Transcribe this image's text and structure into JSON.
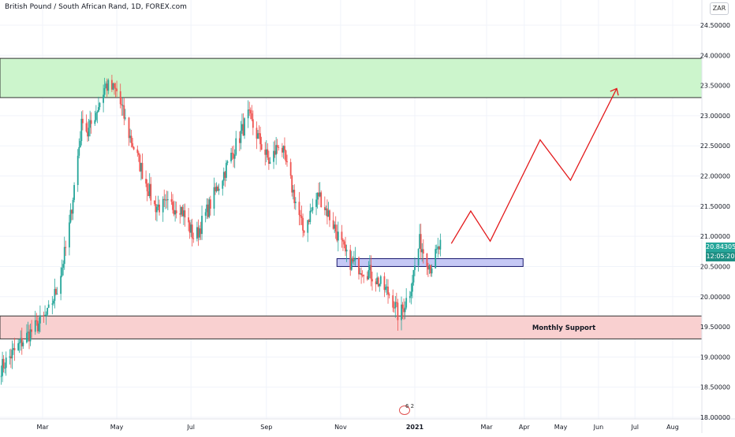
{
  "header": {
    "title": "British Pound / South African Rand, 1D, FOREX.com",
    "currency_button": "ZAR"
  },
  "price_labels": {
    "last_price": "20.84305",
    "countdown": "12:05:20"
  },
  "annotations": {
    "monthly_support": "Monthly Support"
  },
  "logo": {
    "digits": "6 2"
  },
  "colors": {
    "up_candle": "#26a69a",
    "down_candle": "#ef5350",
    "resistance_zone": "#ccf5cc",
    "support_zone": "#f9d0d0",
    "breakout_box": "#c5c8f5",
    "projection_line": "#e31a1c",
    "price_tag": "#26a69a"
  },
  "chart_data": {
    "type": "candlestick",
    "symbol": "British Pound / South African Rand",
    "interval": "1D",
    "y_axis": {
      "range": [
        18.0,
        24.6
      ],
      "ticks": [
        "18.00000",
        "18.50000",
        "19.00000",
        "19.50000",
        "20.00000",
        "20.50000",
        "21.00000",
        "21.50000",
        "22.00000",
        "22.50000",
        "23.00000",
        "23.50000",
        "24.00000",
        "24.50000"
      ],
      "tick_values": [
        18.0,
        18.5,
        19.0,
        19.5,
        20.0,
        20.5,
        21.0,
        21.5,
        22.0,
        22.5,
        23.0,
        23.5,
        24.0,
        24.5
      ]
    },
    "x_axis": {
      "ticks": [
        "Mar",
        "May",
        "Jul",
        "Sep",
        "Nov",
        "2021",
        "Mar",
        "Apr",
        "May",
        "Jun",
        "Jul",
        "Aug"
      ],
      "tick_dates": [
        "2020-03-01",
        "2020-05-01",
        "2020-07-01",
        "2020-09-01",
        "2020-11-01",
        "2021-01-01",
        "2021-03-01",
        "2021-04-01",
        "2021-05-01",
        "2021-06-01",
        "2021-07-01",
        "2021-08-01"
      ],
      "range": [
        "2020-01-26",
        "2021-08-25"
      ]
    },
    "closing_path": [
      {
        "date": "2020-01-26",
        "close": 18.8
      },
      {
        "date": "2020-02-15",
        "close": 19.3
      },
      {
        "date": "2020-03-05",
        "close": 19.7
      },
      {
        "date": "2020-03-14",
        "close": 20.2
      },
      {
        "date": "2020-03-22",
        "close": 21.0
      },
      {
        "date": "2020-04-03",
        "close": 23.0
      },
      {
        "date": "2020-04-07",
        "close": 22.7
      },
      {
        "date": "2020-04-22",
        "close": 23.5
      },
      {
        "date": "2020-05-01",
        "close": 23.4
      },
      {
        "date": "2020-05-11",
        "close": 22.7
      },
      {
        "date": "2020-06-01",
        "close": 21.5
      },
      {
        "date": "2020-06-22",
        "close": 21.5
      },
      {
        "date": "2020-07-04",
        "close": 20.95
      },
      {
        "date": "2020-08-09",
        "close": 22.6
      },
      {
        "date": "2020-08-17",
        "close": 23.0
      },
      {
        "date": "2020-09-04",
        "close": 22.2
      },
      {
        "date": "2020-09-12",
        "close": 22.6
      },
      {
        "date": "2020-10-01",
        "close": 21.1
      },
      {
        "date": "2020-10-14",
        "close": 21.7
      },
      {
        "date": "2020-10-26",
        "close": 21.2
      },
      {
        "date": "2020-11-07",
        "close": 20.6
      },
      {
        "date": "2020-11-25",
        "close": 20.4
      },
      {
        "date": "2020-12-13",
        "close": 20.0
      },
      {
        "date": "2020-12-19",
        "close": 19.65
      },
      {
        "date": "2020-12-28",
        "close": 20.1
      },
      {
        "date": "2021-01-05",
        "close": 20.9
      },
      {
        "date": "2021-01-14",
        "close": 20.5
      },
      {
        "date": "2021-01-22",
        "close": 20.84305
      }
    ],
    "last_price": 20.84305,
    "zones": [
      {
        "name": "resistance",
        "from": "2020-01-26",
        "to": "2021-08-25",
        "low": 23.3,
        "high": 23.95
      },
      {
        "name": "Monthly Support",
        "from": "2020-01-26",
        "to": "2021-08-25",
        "low": 19.3,
        "high": 19.68
      },
      {
        "name": "breakout",
        "from": "2020-10-29",
        "to": "2021-03-31",
        "low": 20.5,
        "high": 20.63
      }
    ],
    "projection": [
      {
        "date": "2021-01-31",
        "value": 20.88
      },
      {
        "date": "2021-02-16",
        "value": 21.42
      },
      {
        "date": "2021-03-04",
        "value": 20.92
      },
      {
        "date": "2021-04-14",
        "value": 22.6
      },
      {
        "date": "2021-05-09",
        "value": 21.93
      },
      {
        "date": "2021-06-16",
        "value": 23.45
      }
    ],
    "grid": true
  }
}
